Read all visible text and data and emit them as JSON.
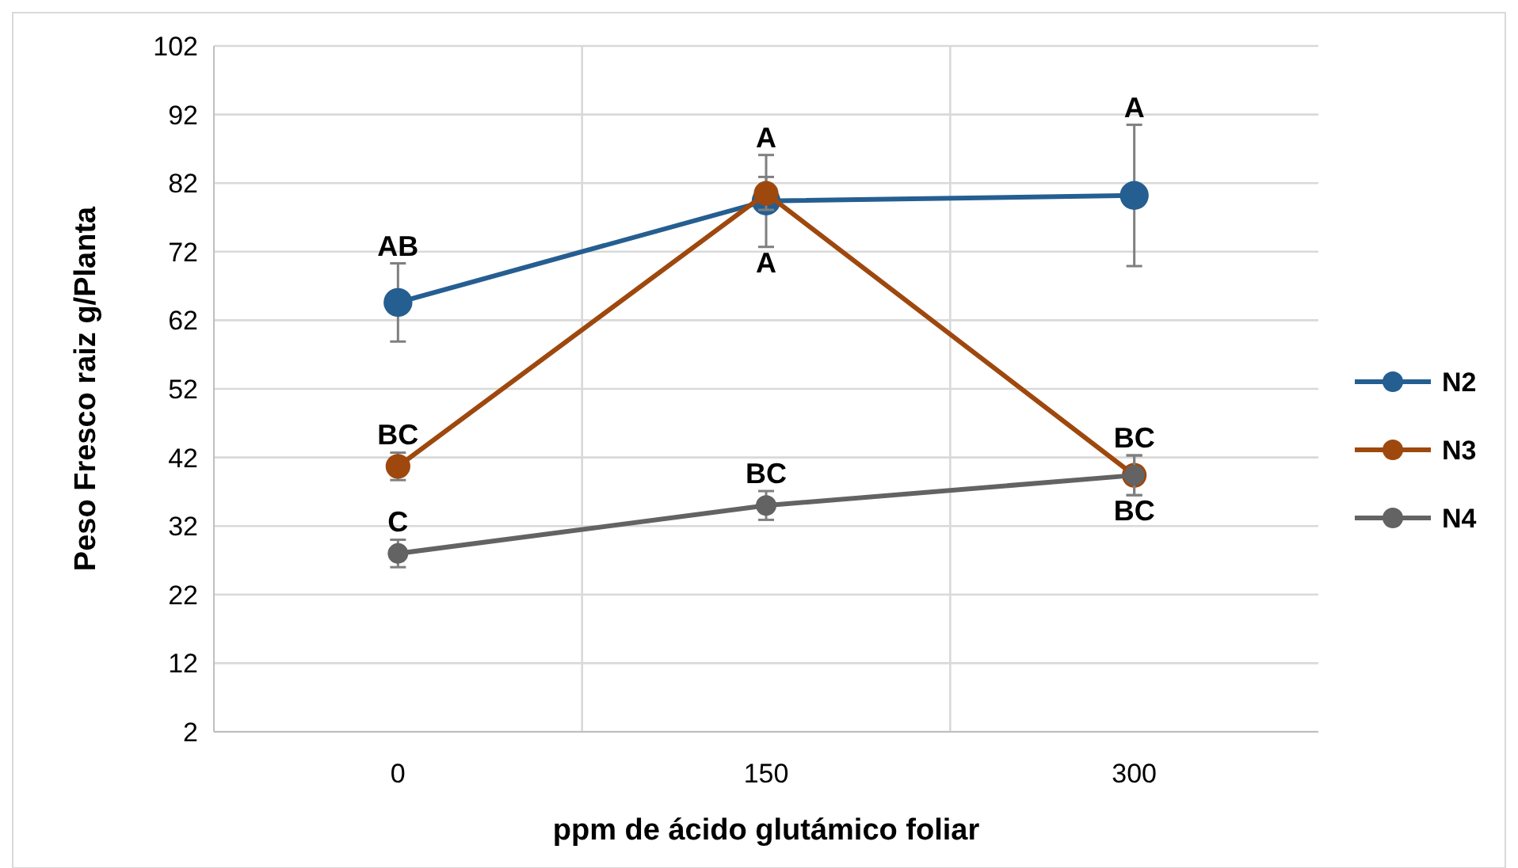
{
  "chart_data": {
    "type": "line",
    "xlabel": "ppm de ácido glutámico foliar",
    "ylabel": "Peso Fresco raiz g/Planta",
    "categories": [
      "0",
      "150",
      "300"
    ],
    "series": [
      {
        "name": "N2",
        "color": "#255e91",
        "values": [
          64.6,
          79.4,
          80.2
        ],
        "errors": [
          5.7,
          6.7,
          10.3
        ]
      },
      {
        "name": "N3",
        "color": "#9e480e",
        "values": [
          40.7,
          80.5,
          39.4
        ],
        "errors": [
          2,
          2.4,
          2.9
        ]
      },
      {
        "name": "N4",
        "color": "#636363",
        "values": [
          28.0,
          35.0,
          39.4
        ],
        "errors": [
          2,
          2.1,
          2.9
        ]
      }
    ],
    "ylim": [
      2,
      102
    ],
    "yticks": [
      2,
      12,
      22,
      32,
      42,
      52,
      62,
      72,
      82,
      92,
      102
    ],
    "grid": true,
    "legend": "right",
    "marker": "circle",
    "annotations": [
      {
        "text": "AB",
        "x": "0",
        "y": 64.6
      },
      {
        "text": "A",
        "x": "150",
        "y": 80.5
      },
      {
        "text": "A",
        "x": "150",
        "y": 79.4
      },
      {
        "text": "A",
        "x": "300",
        "y": 80.2
      },
      {
        "text": "BC",
        "x": "0",
        "y": 40.7
      },
      {
        "text": "BC",
        "x": "300",
        "y": 39.4
      },
      {
        "text": "C",
        "x": "0",
        "y": 28.0
      },
      {
        "text": "BC",
        "x": "150",
        "y": 35.0
      },
      {
        "text": "BC",
        "x": "300",
        "y": 39.4
      }
    ]
  }
}
